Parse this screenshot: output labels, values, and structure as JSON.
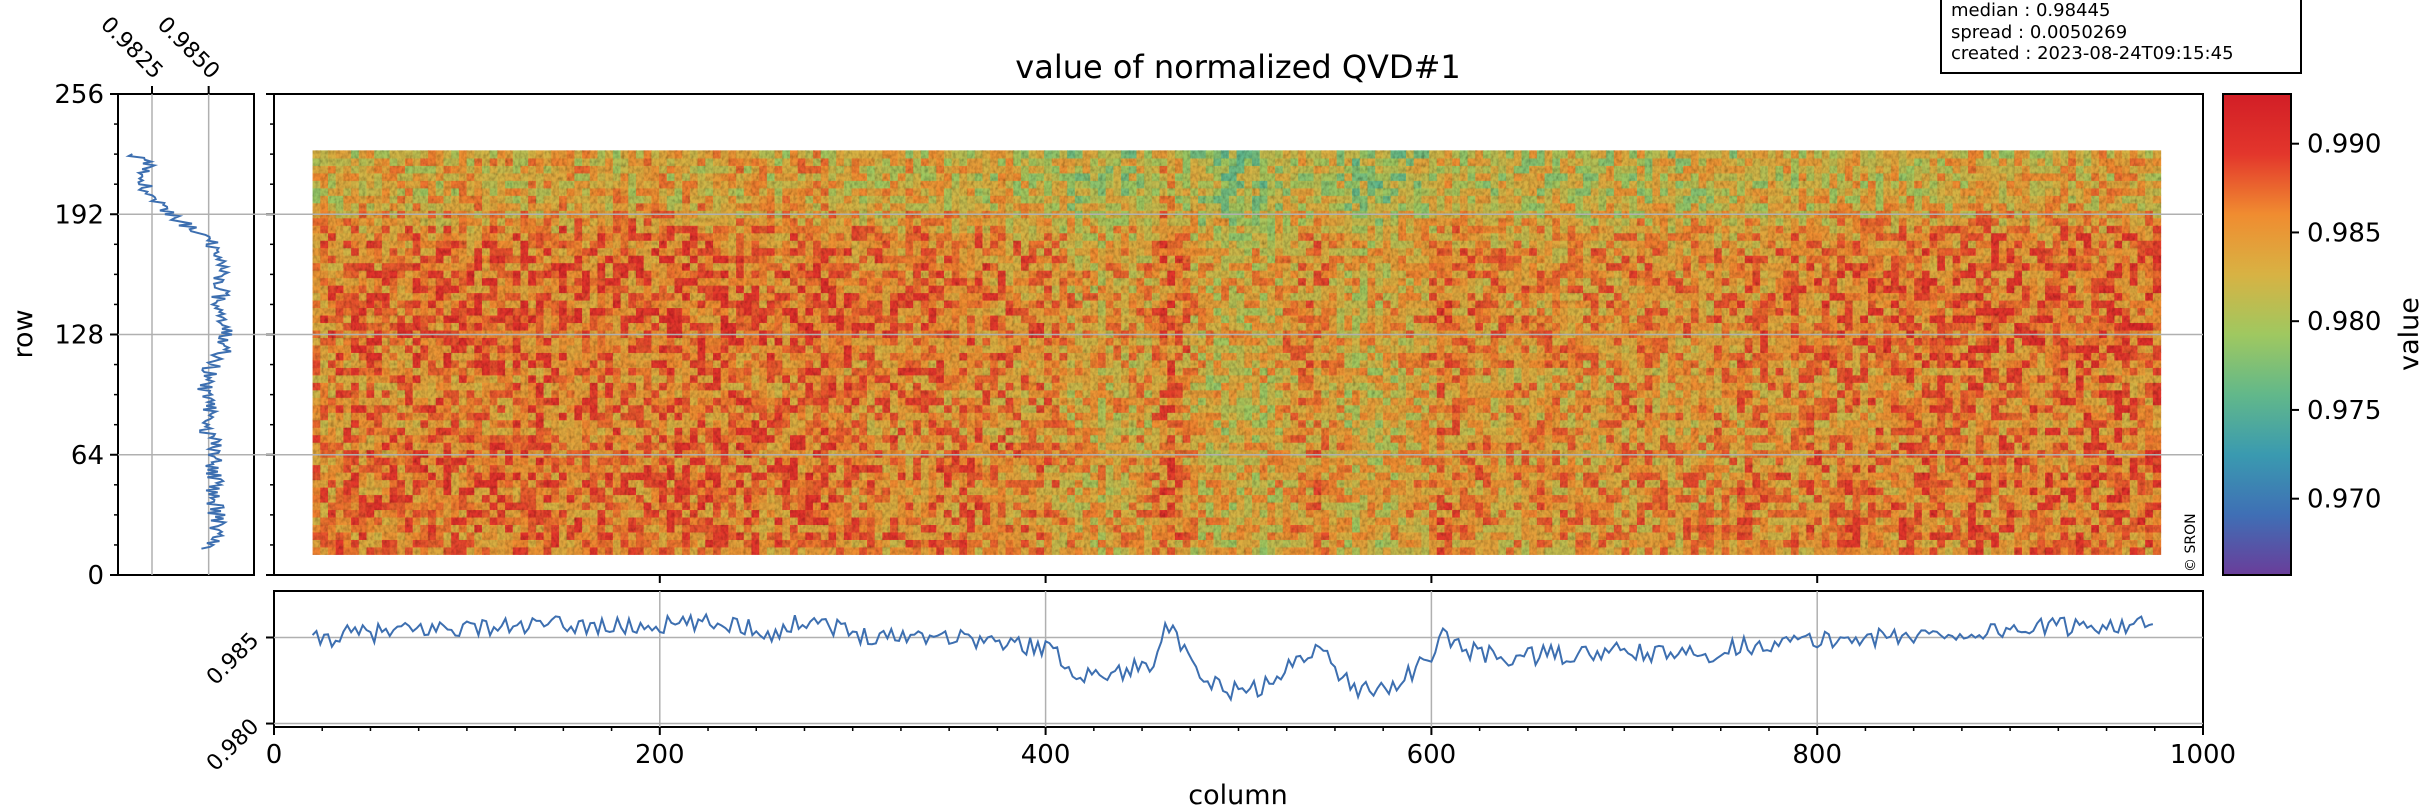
{
  "chart_data": [
    {
      "name": "image",
      "type": "heatmap",
      "title": "value of normalized QVD#1",
      "xlabel": "",
      "ylabel": "row",
      "xlim": [
        0,
        1000
      ],
      "ylim": [
        0,
        256
      ],
      "y_ticks": [
        0,
        64,
        128,
        192,
        256
      ],
      "data_extent": {
        "x": [
          20,
          978
        ],
        "y": [
          11,
          226
        ]
      },
      "colormap": [
        "#6a3d9a",
        "#3f6fb5",
        "#3a9ab0",
        "#62b88a",
        "#9fc860",
        "#d8b243",
        "#f08c30",
        "#e3362c",
        "#d21e26"
      ],
      "credit": "© SRON"
    },
    {
      "name": "column-profile",
      "type": "line",
      "xlabel": "column",
      "ylabel": "",
      "xlim": [
        0,
        1000
      ],
      "ylim": [
        0.9798,
        0.9877
      ],
      "x_ticks": [
        0,
        200,
        400,
        600,
        800,
        1000
      ],
      "y_ticks": [
        0.98,
        0.985
      ],
      "y_ticklabels": [
        "0.980",
        "0.985"
      ],
      "series": [
        {
          "color": "#3d6fb0",
          "x": [
            20,
            40,
            60,
            80,
            100,
            120,
            140,
            160,
            180,
            200,
            220,
            240,
            260,
            278,
            300,
            320,
            340,
            360,
            380,
            400,
            410,
            420,
            440,
            455,
            462,
            480,
            500,
            520,
            530,
            540,
            560,
            580,
            600,
            605,
            620,
            640,
            660,
            680,
            700,
            720,
            740,
            760,
            780,
            800,
            820,
            840,
            860,
            880,
            900,
            920,
            940,
            960,
            975
          ],
          "y": [
            0.9848,
            0.9852,
            0.9853,
            0.9855,
            0.9856,
            0.9856,
            0.9857,
            0.9857,
            0.9856,
            0.9857,
            0.9858,
            0.9858,
            0.9852,
            0.9862,
            0.9852,
            0.9851,
            0.9852,
            0.985,
            0.9846,
            0.9845,
            0.9835,
            0.9828,
            0.983,
            0.9835,
            0.986,
            0.9825,
            0.9818,
            0.9824,
            0.9838,
            0.9845,
            0.982,
            0.9822,
            0.9838,
            0.9852,
            0.9842,
            0.9838,
            0.984,
            0.984,
            0.9842,
            0.984,
            0.984,
            0.9845,
            0.9847,
            0.9848,
            0.985,
            0.985,
            0.9852,
            0.9852,
            0.9855,
            0.9856,
            0.9857,
            0.9858,
            0.9857
          ]
        }
      ]
    },
    {
      "name": "row-profile",
      "type": "line",
      "xlabel": "",
      "ylabel": "",
      "xlim": [
        0.981,
        0.987
      ],
      "ylim": [
        0,
        256
      ],
      "x_ticks": [
        0.9825,
        0.985
      ],
      "x_ticklabels": [
        "0.9825",
        "0.9850"
      ],
      "series": [
        {
          "color": "#3d6fb0",
          "y": [
            14,
            20,
            30,
            40,
            50,
            60,
            70,
            80,
            90,
            100,
            110,
            120,
            130,
            140,
            150,
            160,
            170,
            180,
            188,
            196,
            204,
            212,
            218,
            224
          ],
          "x": [
            0.9848,
            0.9853,
            0.9854,
            0.9852,
            0.9853,
            0.9852,
            0.9853,
            0.9847,
            0.9852,
            0.9848,
            0.9851,
            0.9857,
            0.9858,
            0.9856,
            0.9855,
            0.9856,
            0.9854,
            0.9849,
            0.9838,
            0.9828,
            0.9822,
            0.982,
            0.9826,
            0.9817
          ]
        }
      ]
    },
    {
      "name": "colorbar",
      "type": "heatmap",
      "ylabel": "value",
      "ylim": [
        0.9657,
        0.9928
      ],
      "y_ticks": [
        0.97,
        0.975,
        0.98,
        0.985,
        0.99
      ],
      "y_ticklabels": [
        "0.970",
        "0.975",
        "0.980",
        "0.985",
        "0.990"
      ]
    }
  ],
  "info_box": {
    "lines": [
      "median : 0.98445",
      "spread : 0.0050269",
      "created : 2023-08-24T09:15:45"
    ]
  }
}
